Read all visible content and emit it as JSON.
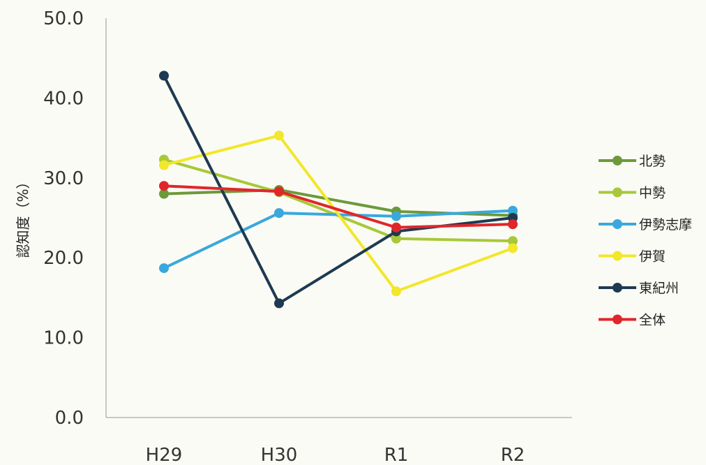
{
  "chart_data": {
    "type": "line",
    "title": "",
    "xlabel": "",
    "ylabel": "認知度（%）",
    "categories": [
      "H29",
      "H30",
      "R1",
      "R2"
    ],
    "ylim": [
      0,
      50
    ],
    "yticks": [
      "0.0",
      "10.0",
      "20.0",
      "30.0",
      "40.0",
      "50.0"
    ],
    "grid": false,
    "legend_position": "right",
    "series": [
      {
        "name": "北勢",
        "color": "#6b9a3a",
        "values": [
          28.0,
          28.5,
          25.8,
          25.3
        ]
      },
      {
        "name": "中勢",
        "color": "#a8c83a",
        "values": [
          32.3,
          28.2,
          22.4,
          22.1
        ]
      },
      {
        "name": "伊勢志摩",
        "color": "#3aa8dc",
        "values": [
          18.7,
          25.6,
          25.2,
          25.9
        ]
      },
      {
        "name": "伊賀",
        "color": "#f2e72a",
        "values": [
          31.6,
          35.3,
          15.8,
          21.2
        ]
      },
      {
        "name": "東紀州",
        "color": "#1e3a52",
        "values": [
          42.8,
          14.3,
          23.3,
          25.0
        ]
      },
      {
        "name": "全体",
        "color": "#e0262a",
        "values": [
          29.0,
          28.3,
          23.8,
          24.2
        ]
      }
    ]
  }
}
